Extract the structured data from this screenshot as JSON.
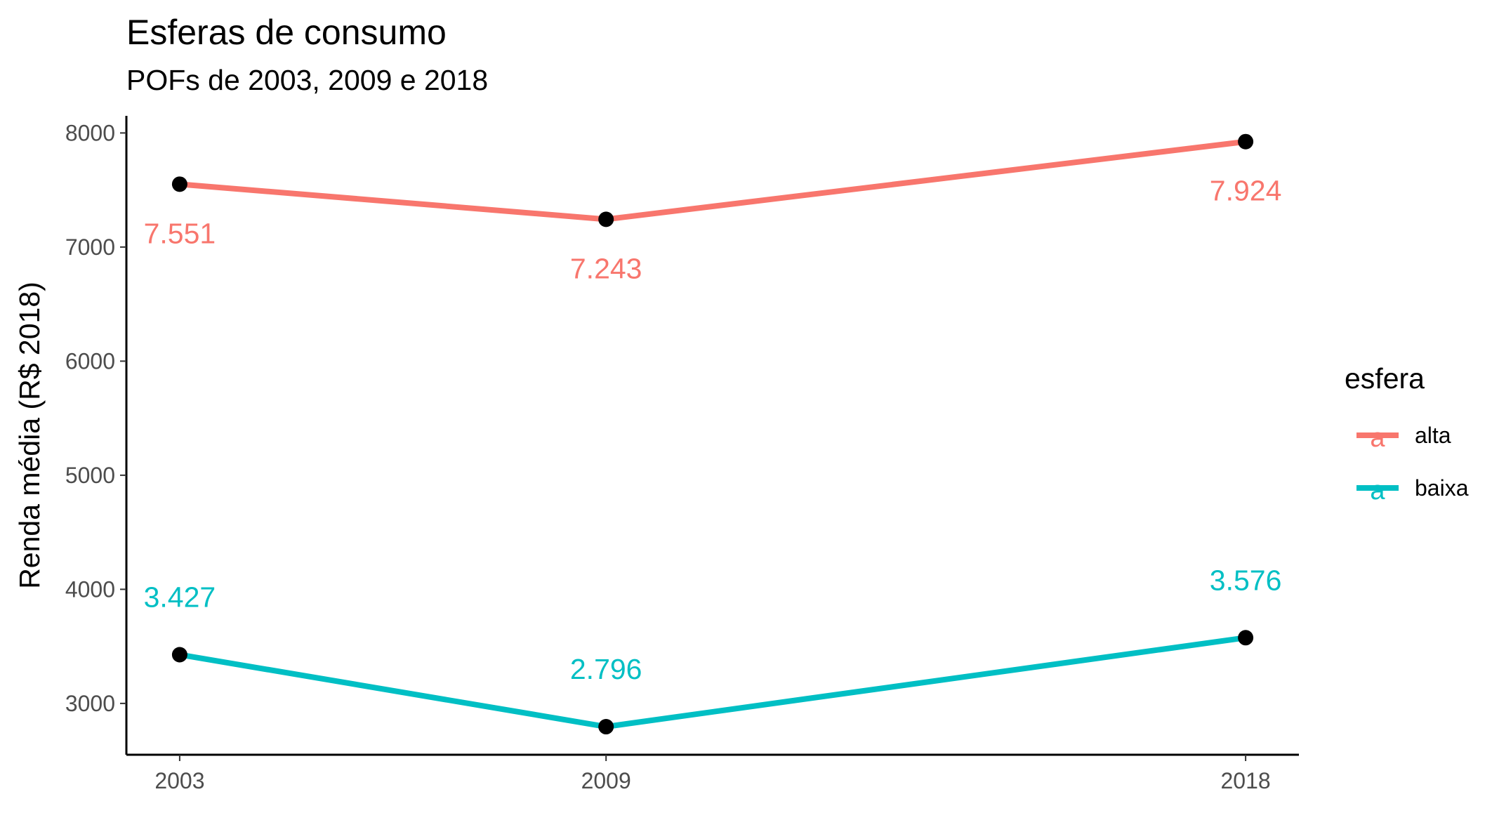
{
  "chart_data": {
    "type": "line",
    "title": "Esferas de consumo",
    "subtitle": "POFs de 2003, 2009 e 2018",
    "xlabel": "",
    "ylabel": "Renda média (R$ 2018)",
    "x": [
      "2003",
      "2009",
      "2018"
    ],
    "xlim": [
      2002.25,
      2018.75
    ],
    "ylim": [
      2550,
      8150
    ],
    "yticks": [
      3000,
      4000,
      5000,
      6000,
      7000,
      8000
    ],
    "grid": false,
    "legend": {
      "title": "esfera",
      "position": "right",
      "key_glyph": "a"
    },
    "series": [
      {
        "name": "alta",
        "color": "#F8766D",
        "values": [
          7551,
          7243,
          7924
        ],
        "labels": [
          "7.551",
          "7.243",
          "7.924"
        ],
        "label_position": "below"
      },
      {
        "name": "baixa",
        "color": "#00BFC4",
        "values": [
          3427,
          2796,
          3576
        ],
        "labels": [
          "3.427",
          "2.796",
          "3.576"
        ],
        "label_position": "above"
      }
    ],
    "point_color": "#000000"
  }
}
